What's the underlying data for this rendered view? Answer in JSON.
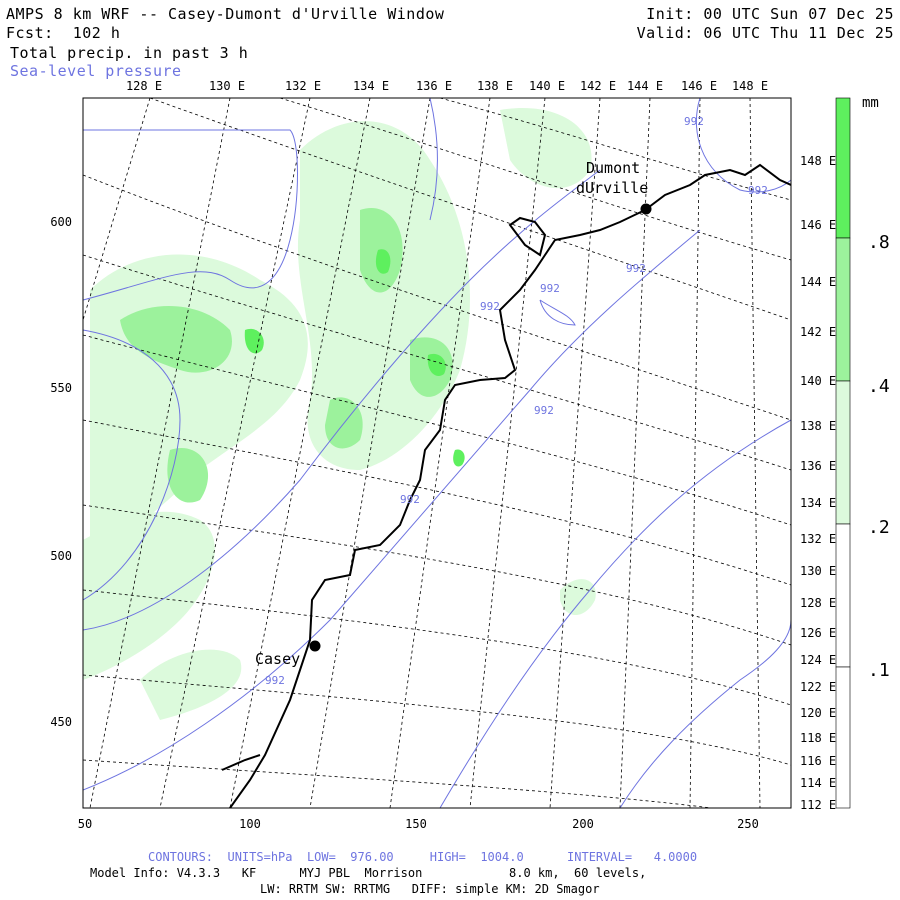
{
  "header": {
    "title": "AMPS 8 km WRF -- Casey-Dumont d'Urville Window",
    "forecast": "Fcst:  102 h",
    "field1": "Total precip. in past 3 h",
    "field2": "Sea-level pressure",
    "init": "Init: 00 UTC Sun 07 Dec 25",
    "valid": "Valid: 06 UTC Thu 11 Dec 25"
  },
  "map": {
    "top_lon_labels": [
      "128 E",
      "130 E",
      "132 E",
      "134 E",
      "136 E",
      "138 E",
      "140 E",
      "142 E",
      "144 E",
      "146 E",
      "148 E"
    ],
    "right_lon_labels": [
      "148 E",
      "146 E",
      "144 E",
      "142 E",
      "140 E",
      "138 E",
      "136 E",
      "134 E",
      "132 E",
      "130 E",
      "128 E",
      "126 E",
      "124 E",
      "122 E",
      "120 E",
      "118 E",
      "116 E",
      "114 E",
      "112 E"
    ],
    "left_ticks": [
      "600",
      "550",
      "500",
      "450"
    ],
    "bottom_ticks": [
      "50",
      "100",
      "150",
      "200",
      "250"
    ],
    "stations": [
      {
        "name_line1": "Dumont",
        "name_line2": "dUrville"
      },
      {
        "name_line1": "Casey",
        "name_line2": ""
      }
    ],
    "contour_labels": [
      "992",
      "992",
      "992",
      "992",
      "992",
      "992",
      "992",
      "992"
    ]
  },
  "colorbar": {
    "unit": "mm",
    "labels": [
      ".8",
      ".4",
      ".2",
      ".1"
    ],
    "colors": [
      "#5ef05e",
      "#9cf29c",
      "#dcfadc",
      "#ffffff"
    ]
  },
  "footer": {
    "contours": "CONTOURS:  UNITS=hPa  LOW=  976.00     HIGH=  1004.0      INTERVAL=   4.0000",
    "model_info": "Model Info: V4.3.3   KF      MYJ PBL  Morrison            8.0 km,  60 levels,",
    "physics": "LW: RRTM SW: RRTMG   DIFF: simple KM: 2D Smagor"
  }
}
